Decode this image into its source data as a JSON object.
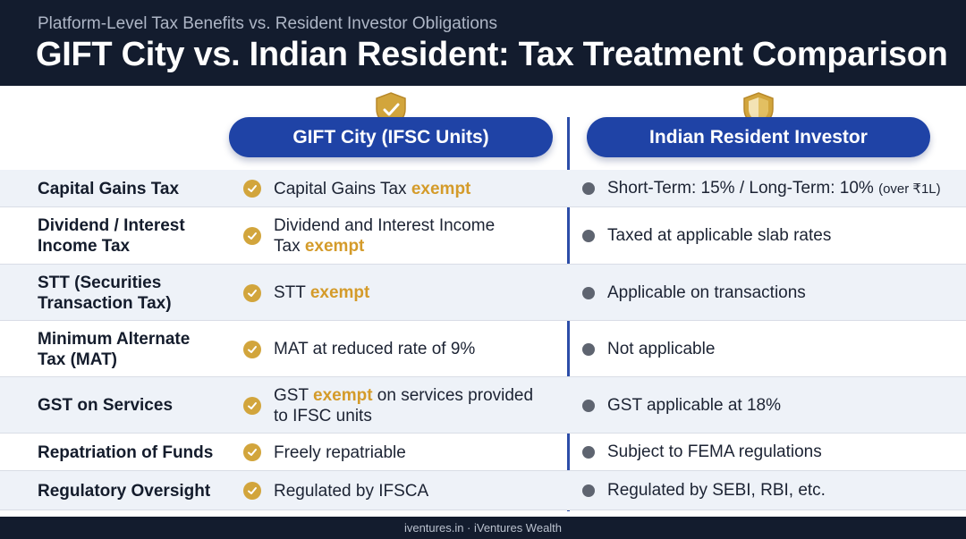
{
  "header": {
    "subtitle": "Platform-Level Tax Benefits vs. Resident Investor Obligations",
    "title": "GIFT City vs. Indian Resident: Tax Treatment Comparison"
  },
  "columns": {
    "gift": "GIFT City (IFSC Units)",
    "resident": "Indian Resident Investor"
  },
  "icons": {
    "gift_badge": "shield-check-icon",
    "resident_badge": "shield-icon",
    "gift_marker": "check-circle-icon",
    "resident_marker": "bullet-dot-icon"
  },
  "colors": {
    "header_bg": "#131c2e",
    "accent_blue": "#1f43a6",
    "gold": "#d2a53c",
    "row_shade": "#eef2f8"
  },
  "rows": [
    {
      "label_lines": [
        "Capital Gains Tax"
      ],
      "gift_lines": [
        {
          "pre": "Capital Gains Tax ",
          "hl": "exempt",
          "post": ""
        }
      ],
      "resident_text": "Short-Term: 15% / Long-Term: 10% ",
      "resident_note": "(over ₹1L)"
    },
    {
      "label_lines": [
        "Dividend / Interest",
        "Income Tax"
      ],
      "gift_lines": [
        {
          "pre": "Dividend and Interest Income",
          "hl": "",
          "post": ""
        },
        {
          "pre": "Tax ",
          "hl": "exempt",
          "post": ""
        }
      ],
      "resident_text": "Taxed at applicable slab rates",
      "resident_note": ""
    },
    {
      "label_lines": [
        "STT (Securities",
        "Transaction Tax)"
      ],
      "gift_lines": [
        {
          "pre": "STT ",
          "hl": "exempt",
          "post": ""
        }
      ],
      "resident_text": "Applicable on transactions",
      "resident_note": ""
    },
    {
      "label_lines": [
        "Minimum Alternate",
        "Tax (MAT)"
      ],
      "gift_lines": [
        {
          "pre": "MAT at reduced rate of 9%",
          "hl": "",
          "post": ""
        }
      ],
      "resident_text": "Not applicable",
      "resident_note": ""
    },
    {
      "label_lines": [
        "GST on Services"
      ],
      "gift_lines": [
        {
          "pre": "GST ",
          "hl": "exempt",
          "post": " on services provided"
        },
        {
          "pre": "to IFSC units",
          "hl": "",
          "post": ""
        }
      ],
      "resident_text": "GST applicable at 18%",
      "resident_note": ""
    },
    {
      "label_lines": [
        "Repatriation of Funds"
      ],
      "gift_lines": [
        {
          "pre": "Freely repatriable",
          "hl": "",
          "post": ""
        }
      ],
      "resident_text": "Subject to FEMA regulations",
      "resident_note": ""
    },
    {
      "label_lines": [
        "Regulatory Oversight"
      ],
      "gift_lines": [
        {
          "pre": "Regulated by IFSCA",
          "hl": "",
          "post": ""
        }
      ],
      "resident_text": "Regulated by SEBI, RBI, etc.",
      "resident_note": ""
    }
  ],
  "footer": {
    "text": "iventures.in · iVentures Wealth"
  }
}
